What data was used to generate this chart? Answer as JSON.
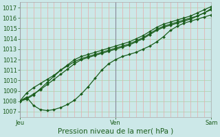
{
  "title": "",
  "xlabel": "Pression niveau de la mer( hPa )",
  "ylabel": "",
  "bg_color": "#cce8e8",
  "plot_bg_color": "#cce8e8",
  "line_color": "#1a5c1a",
  "grid_h_color": "#aacfaa",
  "grid_v_color": "#e8aaaa",
  "ylim": [
    1006.5,
    1017.5
  ],
  "yticks": [
    1007,
    1008,
    1009,
    1010,
    1011,
    1012,
    1013,
    1014,
    1015,
    1016,
    1017
  ],
  "xtick_labels": [
    "Jeu",
    "",
    "Ven",
    "",
    "Sam"
  ],
  "xtick_positions": [
    0,
    0.5,
    1.0,
    1.5,
    2.0
  ],
  "xlim": [
    0.0,
    2.0
  ],
  "day_lines": [
    0.0,
    1.0,
    2.0
  ],
  "series": [
    [
      1008.0,
      1008.2,
      1008.6,
      1009.2,
      1009.8,
      1010.4,
      1011.0,
      1011.5,
      1012.0,
      1012.3,
      1012.5,
      1012.7,
      1012.9,
      1013.1,
      1013.3,
      1013.5,
      1013.7,
      1014.0,
      1014.3,
      1014.7,
      1015.1,
      1015.4,
      1015.6,
      1015.8,
      1016.0,
      1016.2,
      1016.5,
      1016.8,
      1017.1
    ],
    [
      1008.0,
      1008.4,
      1007.6,
      1007.2,
      1007.1,
      1007.2,
      1007.4,
      1007.7,
      1008.1,
      1008.7,
      1009.4,
      1010.2,
      1011.0,
      1011.6,
      1012.0,
      1012.3,
      1012.5,
      1012.7,
      1013.0,
      1013.3,
      1013.7,
      1014.2,
      1014.8,
      1015.2,
      1015.5,
      1015.7,
      1015.9,
      1016.1,
      1016.3
    ],
    [
      1008.0,
      1008.8,
      1009.3,
      1009.7,
      1010.1,
      1010.5,
      1011.0,
      1011.4,
      1011.8,
      1012.1,
      1012.3,
      1012.5,
      1012.7,
      1012.9,
      1013.1,
      1013.3,
      1013.5,
      1013.8,
      1014.1,
      1014.5,
      1014.9,
      1015.2,
      1015.4,
      1015.6,
      1015.8,
      1016.0,
      1016.2,
      1016.5,
      1016.8
    ],
    [
      1008.0,
      1008.3,
      1008.7,
      1009.1,
      1009.6,
      1010.1,
      1010.6,
      1011.1,
      1011.6,
      1012.0,
      1012.2,
      1012.4,
      1012.6,
      1012.8,
      1013.0,
      1013.2,
      1013.4,
      1013.7,
      1014.0,
      1014.4,
      1014.8,
      1015.1,
      1015.3,
      1015.5,
      1015.7,
      1015.9,
      1016.2,
      1016.5,
      1016.9
    ]
  ],
  "marker": "D",
  "markersize": 2,
  "linewidth": 0.9,
  "fontsize_ticks": 6,
  "fontsize_xlabel": 7.5,
  "n_vgrid": 28
}
